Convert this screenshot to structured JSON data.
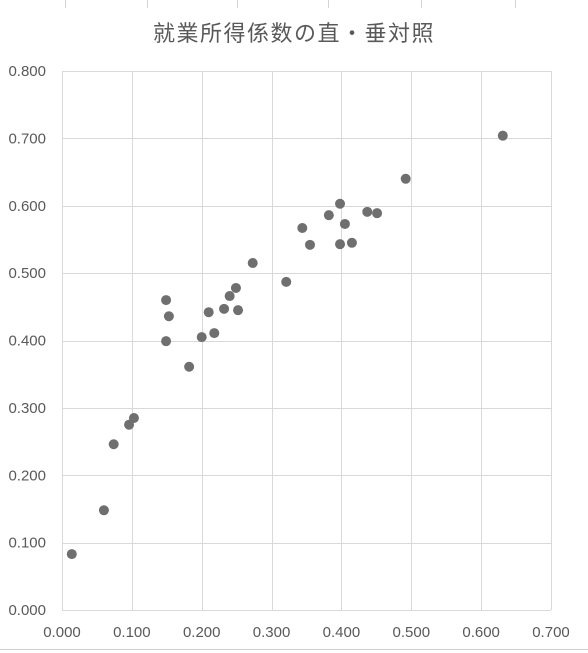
{
  "chart_data": {
    "type": "scatter",
    "title": "就業所得係数の直・垂対照",
    "xlim": [
      0,
      0.7
    ],
    "ylim": [
      0,
      0.8
    ],
    "x_ticks": [
      "0.000",
      "0.100",
      "0.200",
      "0.300",
      "0.400",
      "0.500",
      "0.600",
      "0.700"
    ],
    "y_ticks": [
      "0.000",
      "0.100",
      "0.200",
      "0.300",
      "0.400",
      "0.500",
      "0.600",
      "0.700",
      "0.800"
    ],
    "grid": true,
    "legend": "none",
    "series": [
      {
        "color": "#6f6f6f",
        "x": [
          0.014,
          0.06,
          0.074,
          0.096,
          0.103,
          0.149,
          0.153,
          0.149,
          0.182,
          0.2,
          0.21,
          0.218,
          0.232,
          0.24,
          0.249,
          0.252,
          0.273,
          0.321,
          0.344,
          0.355,
          0.382,
          0.398,
          0.405,
          0.398,
          0.415,
          0.437,
          0.451,
          0.492,
          0.631
        ],
        "y": [
          0.083,
          0.148,
          0.246,
          0.275,
          0.285,
          0.46,
          0.436,
          0.399,
          0.361,
          0.405,
          0.442,
          0.411,
          0.447,
          0.466,
          0.478,
          0.445,
          0.515,
          0.487,
          0.567,
          0.542,
          0.586,
          0.603,
          0.573,
          0.543,
          0.545,
          0.591,
          0.589,
          0.64,
          0.704
        ]
      }
    ]
  },
  "colors": {
    "gridline": "#d9d9d9",
    "text": "#595959",
    "background": "#ffffff"
  }
}
